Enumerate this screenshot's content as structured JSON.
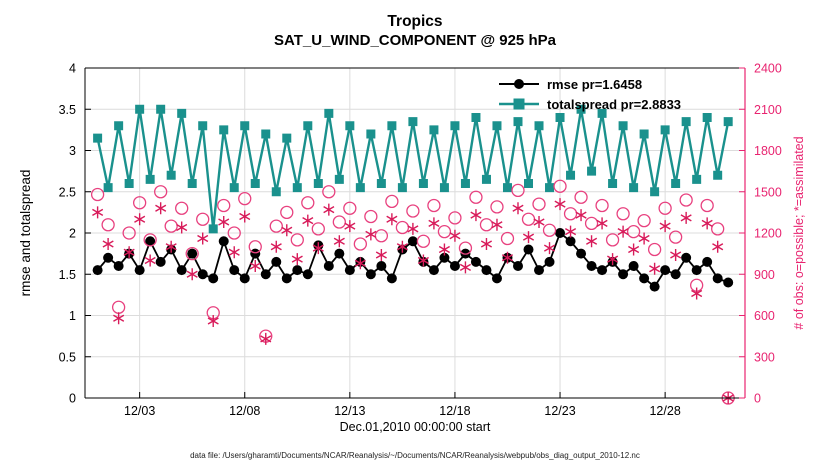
{
  "title": {
    "line1": "Tropics",
    "line2": "SAT_U_WIND_COMPONENT @ 925 hPa"
  },
  "axis_labels": {
    "left": "rmse and totalspread",
    "right": "# of obs: o=possible; *=assimilated",
    "x": "Dec.01,2010 00:00:00 start"
  },
  "legend": {
    "items": [
      {
        "label": "rmse pr=1.6458"
      },
      {
        "label": "totalspread pr=2.8833"
      }
    ]
  },
  "footer": "data file: /Users/gharamti/Documents/NCAR/Reanalysis/~/Documents/NCAR/Reanalysis/webpub/obs_diag_output_2010-12.nc",
  "colors": {
    "rmse": "#000000",
    "totalspread": "#1a918d",
    "obs_possible": "#e8417f",
    "obs_assimilated": "#d81b5a",
    "axis_right": "#e82470",
    "axis_left": "#000000",
    "grid": "#dcdcdc"
  },
  "chart_data": {
    "type": "line",
    "title": "Tropics — SAT_U_WIND_COMPONENT @ 925 hPa",
    "x_unit": "days since Dec.01,2010 00:00:00",
    "xlim_days": [
      -0.6,
      30.8
    ],
    "ylim_left": [
      0,
      4
    ],
    "ylim_right": [
      0,
      2400
    ],
    "x_ticks": {
      "positions_days": [
        2,
        7,
        12,
        17,
        22,
        27
      ],
      "labels": [
        "12/03",
        "12/08",
        "12/13",
        "12/18",
        "12/23",
        "12/28"
      ]
    },
    "left_ticks": {
      "values": [
        0,
        0.5,
        1,
        1.5,
        2,
        2.5,
        3,
        3.5,
        4
      ],
      "labels": [
        "0",
        "0.5",
        "1",
        "1.5",
        "2",
        "2.5",
        "3",
        "3.5",
        "4"
      ]
    },
    "right_ticks": {
      "values": [
        0,
        300,
        600,
        900,
        1200,
        1500,
        1800,
        2100,
        2400
      ],
      "labels": [
        "0",
        "300",
        "600",
        "900",
        "1200",
        "1500",
        "1800",
        "2100",
        "2400"
      ]
    },
    "x_days": [
      0,
      0.5,
      1,
      1.5,
      2,
      2.5,
      3,
      3.5,
      4,
      4.5,
      5,
      5.5,
      6,
      6.5,
      7,
      7.5,
      8,
      8.5,
      9,
      9.5,
      10,
      10.5,
      11,
      11.5,
      12,
      12.5,
      13,
      13.5,
      14,
      14.5,
      15,
      15.5,
      16,
      16.5,
      17,
      17.5,
      18,
      18.5,
      19,
      19.5,
      20,
      20.5,
      21,
      21.5,
      22,
      22.5,
      23,
      23.5,
      24,
      24.5,
      25,
      25.5,
      26,
      26.5,
      27,
      27.5,
      28,
      28.5,
      29,
      29.5,
      30
    ],
    "series": [
      {
        "name": "rmse",
        "axis": "left",
        "marker": "filled-circle",
        "line": true,
        "mean_label": "rmse pr=1.6458",
        "values": [
          1.55,
          1.7,
          1.6,
          1.75,
          1.55,
          1.9,
          1.65,
          1.8,
          1.55,
          1.75,
          1.5,
          1.45,
          1.9,
          1.55,
          1.45,
          1.75,
          1.5,
          1.65,
          1.45,
          1.55,
          1.5,
          1.85,
          1.6,
          1.75,
          1.55,
          1.65,
          1.5,
          1.6,
          1.45,
          1.8,
          1.9,
          1.65,
          1.55,
          1.7,
          1.6,
          1.75,
          1.65,
          1.55,
          1.45,
          1.7,
          1.6,
          1.8,
          1.55,
          1.65,
          2.0,
          1.9,
          1.75,
          1.6,
          1.55,
          1.65,
          1.5,
          1.6,
          1.45,
          1.35,
          1.55,
          1.5,
          1.7,
          1.55,
          1.65,
          1.45,
          1.4
        ]
      },
      {
        "name": "totalspread",
        "axis": "left",
        "marker": "filled-square",
        "line": true,
        "mean_label": "totalspread pr=2.8833",
        "values": [
          3.15,
          2.55,
          3.3,
          2.6,
          3.5,
          2.65,
          3.5,
          2.7,
          3.45,
          2.6,
          3.3,
          2.05,
          3.25,
          2.55,
          3.3,
          2.6,
          3.2,
          2.5,
          3.15,
          2.55,
          3.3,
          2.6,
          3.45,
          2.65,
          3.3,
          2.55,
          3.2,
          2.6,
          3.3,
          2.55,
          3.35,
          2.6,
          3.25,
          2.55,
          3.3,
          2.6,
          3.4,
          2.65,
          3.3,
          2.55,
          3.35,
          2.6,
          3.3,
          2.55,
          3.4,
          2.7,
          3.5,
          2.75,
          3.45,
          2.6,
          3.3,
          2.55,
          3.2,
          2.5,
          3.25,
          2.6,
          3.35,
          2.65,
          3.4,
          2.7,
          3.35
        ]
      },
      {
        "name": "obs_possible",
        "axis": "right",
        "marker": "open-circle",
        "line": false,
        "values": [
          1480,
          1260,
          660,
          1200,
          1420,
          1150,
          1500,
          1250,
          1380,
          1050,
          1300,
          620,
          1400,
          1200,
          1450,
          1100,
          450,
          1250,
          1350,
          1150,
          1420,
          1230,
          1500,
          1280,
          1380,
          1120,
          1320,
          1180,
          1430,
          1240,
          1360,
          1140,
          1400,
          1210,
          1310,
          1090,
          1460,
          1260,
          1390,
          1160,
          1510,
          1300,
          1410,
          1220,
          1540,
          1340,
          1460,
          1270,
          1400,
          1150,
          1340,
          1210,
          1290,
          1080,
          1380,
          1170,
          1440,
          820,
          1400,
          1230,
          0
        ]
      },
      {
        "name": "obs_assimilated",
        "axis": "right",
        "marker": "asterisk",
        "line": false,
        "values": [
          1350,
          1120,
          580,
          1060,
          1300,
          1000,
          1380,
          1100,
          1240,
          900,
          1160,
          560,
          1280,
          1060,
          1320,
          960,
          430,
          1100,
          1220,
          1010,
          1290,
          1090,
          1370,
          1140,
          1250,
          980,
          1190,
          1040,
          1300,
          1100,
          1230,
          1000,
          1270,
          1080,
          1180,
          950,
          1330,
          1120,
          1260,
          1020,
          1380,
          1170,
          1280,
          1090,
          1410,
          1210,
          1330,
          1140,
          1270,
          1010,
          1210,
          1080,
          1160,
          940,
          1250,
          1040,
          1310,
          760,
          1270,
          1100,
          0
        ]
      }
    ]
  }
}
